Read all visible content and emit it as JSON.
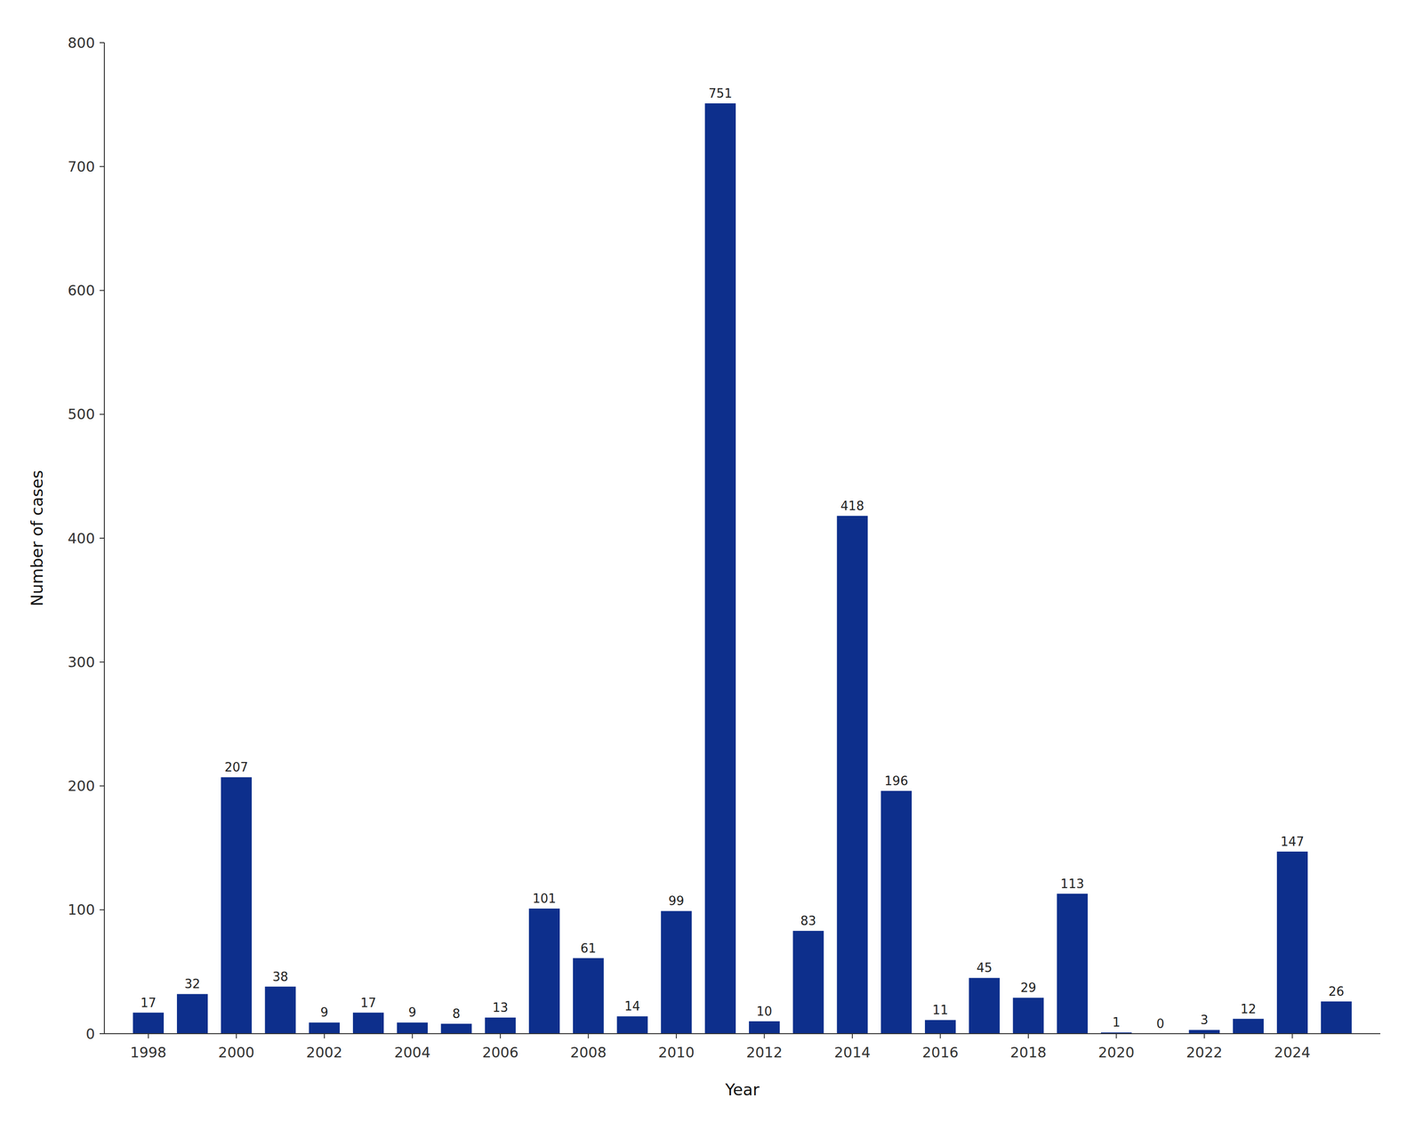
{
  "chart_data": {
    "type": "bar",
    "x": [
      1998,
      1999,
      2000,
      2001,
      2002,
      2003,
      2004,
      2005,
      2006,
      2007,
      2008,
      2009,
      2010,
      2011,
      2012,
      2013,
      2014,
      2015,
      2016,
      2017,
      2018,
      2019,
      2020,
      2021,
      2022,
      2023,
      2024,
      2025
    ],
    "values": [
      17,
      32,
      207,
      38,
      9,
      17,
      9,
      8,
      13,
      101,
      61,
      14,
      99,
      751,
      10,
      83,
      418,
      196,
      11,
      45,
      29,
      113,
      1,
      0,
      3,
      12,
      147,
      26
    ],
    "color": "#0d2f8c",
    "xlabel": "Year",
    "ylabel": "Number of cases",
    "xlim": [
      1997,
      2026
    ],
    "xticks": [
      1998,
      2000,
      2002,
      2004,
      2006,
      2008,
      2010,
      2012,
      2014,
      2016,
      2018,
      2020,
      2022,
      2024
    ],
    "ylim": [
      0,
      800
    ],
    "yticks": [
      0,
      100,
      200,
      300,
      400,
      500,
      600,
      700,
      800
    ],
    "data_labels": true,
    "grid": false
  }
}
